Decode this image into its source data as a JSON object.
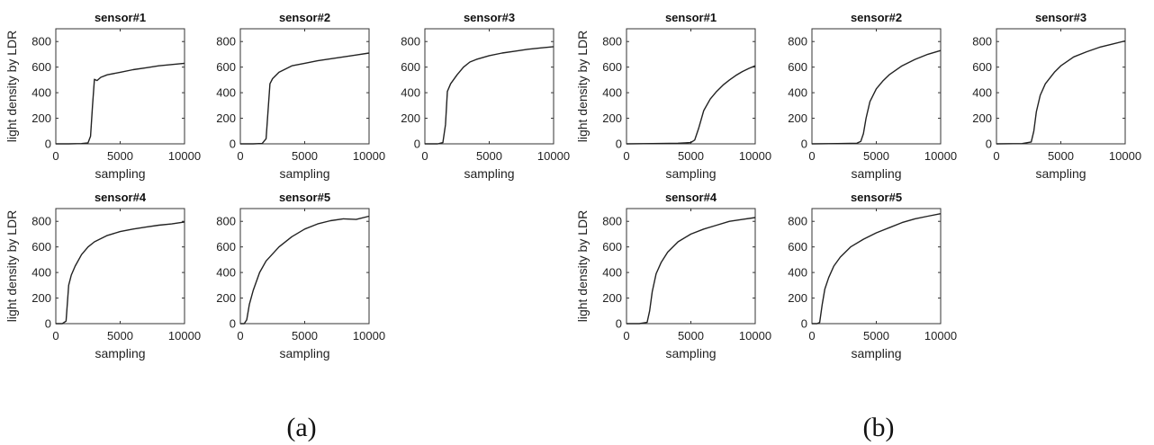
{
  "chart_data": [
    {
      "group": "a",
      "type": "line",
      "title": "sensor#1",
      "xlabel": "sampling",
      "ylabel": "light density by LDR",
      "xlim": [
        0,
        10000
      ],
      "ylim": [
        0,
        900
      ],
      "xticks": [
        "0",
        "5000",
        "10000"
      ],
      "yticks": [
        "0",
        "200",
        "400",
        "600",
        "800"
      ],
      "x": [
        0,
        1000,
        2000,
        2500,
        2700,
        2850,
        3000,
        3200,
        3500,
        4000,
        5000,
        6000,
        7000,
        8000,
        9000,
        10000
      ],
      "y": [
        0,
        0,
        2,
        8,
        60,
        300,
        505,
        495,
        520,
        540,
        560,
        580,
        595,
        610,
        620,
        630
      ]
    },
    {
      "group": "a",
      "type": "line",
      "title": "sensor#2",
      "xlabel": "sampling",
      "ylabel": "",
      "xlim": [
        0,
        10000
      ],
      "ylim": [
        0,
        900
      ],
      "xticks": [
        "0",
        "5000",
        "10000"
      ],
      "yticks": [
        "0",
        "200",
        "400",
        "600",
        "800"
      ],
      "x": [
        0,
        1000,
        1700,
        2000,
        2150,
        2300,
        2500,
        3000,
        4000,
        5000,
        6000,
        7000,
        8000,
        9000,
        10000
      ],
      "y": [
        0,
        0,
        3,
        40,
        250,
        470,
        510,
        560,
        610,
        630,
        650,
        665,
        680,
        695,
        710
      ]
    },
    {
      "group": "a",
      "type": "line",
      "title": "sensor#3",
      "xlabel": "sampling",
      "ylabel": "",
      "xlim": [
        0,
        10000
      ],
      "ylim": [
        0,
        900
      ],
      "xticks": [
        "0",
        "5000",
        "10000"
      ],
      "yticks": [
        "0",
        "200",
        "400",
        "600",
        "800"
      ],
      "x": [
        0,
        1000,
        1400,
        1600,
        1750,
        2000,
        2500,
        3000,
        3500,
        4000,
        5000,
        6000,
        7000,
        8000,
        9000,
        10000
      ],
      "y": [
        0,
        0,
        10,
        150,
        410,
        470,
        540,
        600,
        640,
        660,
        690,
        710,
        725,
        740,
        750,
        760
      ]
    },
    {
      "group": "a",
      "type": "line",
      "title": "sensor#4",
      "xlabel": "sampling",
      "ylabel": "light density by LDR",
      "xlim": [
        0,
        10000
      ],
      "ylim": [
        0,
        900
      ],
      "xticks": [
        "0",
        "5000",
        "10000"
      ],
      "yticks": [
        "0",
        "200",
        "400",
        "600",
        "800"
      ],
      "x": [
        0,
        500,
        800,
        1000,
        1200,
        1500,
        2000,
        2500,
        3000,
        4000,
        5000,
        6000,
        7000,
        8000,
        9000,
        10000
      ],
      "y": [
        0,
        0,
        20,
        300,
        380,
        450,
        540,
        600,
        640,
        690,
        720,
        740,
        755,
        770,
        780,
        795
      ]
    },
    {
      "group": "a",
      "type": "line",
      "title": "sensor#5",
      "xlabel": "sampling",
      "ylabel": "",
      "xlim": [
        0,
        10000
      ],
      "ylim": [
        0,
        900
      ],
      "xticks": [
        "0",
        "5000",
        "10000"
      ],
      "yticks": [
        "0",
        "200",
        "400",
        "600",
        "800"
      ],
      "x": [
        0,
        300,
        500,
        700,
        1000,
        1500,
        2000,
        3000,
        4000,
        5000,
        6000,
        7000,
        8000,
        9000,
        10000
      ],
      "y": [
        0,
        0,
        30,
        150,
        260,
        400,
        490,
        600,
        680,
        740,
        780,
        805,
        820,
        815,
        840
      ]
    },
    {
      "group": "b",
      "type": "line",
      "title": "sensor#1",
      "xlabel": "sampling",
      "ylabel": "light density by LDR",
      "xlim": [
        0,
        10000
      ],
      "ylim": [
        0,
        900
      ],
      "xticks": [
        "0",
        "5000",
        "10000"
      ],
      "yticks": [
        "0",
        "200",
        "400",
        "600",
        "800"
      ],
      "x": [
        0,
        2000,
        4000,
        5000,
        5300,
        5600,
        6000,
        6500,
        7000,
        7500,
        8000,
        8500,
        9000,
        9500,
        10000
      ],
      "y": [
        0,
        2,
        5,
        10,
        30,
        120,
        260,
        350,
        410,
        460,
        500,
        535,
        565,
        590,
        610
      ]
    },
    {
      "group": "b",
      "type": "line",
      "title": "sensor#2",
      "xlabel": "sampling",
      "ylabel": "",
      "xlim": [
        0,
        10000
      ],
      "ylim": [
        0,
        900
      ],
      "xticks": [
        "0",
        "5000",
        "10000"
      ],
      "yticks": [
        "0",
        "200",
        "400",
        "600",
        "800"
      ],
      "x": [
        0,
        2000,
        3500,
        3800,
        4000,
        4200,
        4500,
        5000,
        5500,
        6000,
        7000,
        8000,
        9000,
        10000
      ],
      "y": [
        0,
        2,
        5,
        20,
        80,
        200,
        330,
        430,
        490,
        540,
        610,
        660,
        700,
        730
      ]
    },
    {
      "group": "b",
      "type": "line",
      "title": "sensor#3",
      "xlabel": "sampling",
      "ylabel": "",
      "xlim": [
        0,
        10000
      ],
      "ylim": [
        0,
        900
      ],
      "xticks": [
        "0",
        "5000",
        "10000"
      ],
      "yticks": [
        "0",
        "200",
        "400",
        "600",
        "800"
      ],
      "x": [
        0,
        2000,
        2700,
        2900,
        3100,
        3400,
        3800,
        4500,
        5000,
        6000,
        7000,
        8000,
        9000,
        10000
      ],
      "y": [
        0,
        2,
        15,
        100,
        250,
        380,
        470,
        560,
        610,
        680,
        720,
        755,
        780,
        805
      ]
    },
    {
      "group": "b",
      "type": "line",
      "title": "sensor#4",
      "xlabel": "sampling",
      "ylabel": "light density by LDR",
      "xlim": [
        0,
        10000
      ],
      "ylim": [
        0,
        900
      ],
      "xticks": [
        "0",
        "5000",
        "10000"
      ],
      "yticks": [
        "0",
        "200",
        "400",
        "600",
        "800"
      ],
      "x": [
        0,
        1000,
        1600,
        1800,
        2000,
        2300,
        2700,
        3200,
        4000,
        5000,
        6000,
        7000,
        8000,
        9000,
        10000
      ],
      "y": [
        0,
        0,
        10,
        100,
        250,
        390,
        480,
        560,
        640,
        700,
        740,
        770,
        800,
        815,
        830
      ]
    },
    {
      "group": "b",
      "type": "line",
      "title": "sensor#5",
      "xlabel": "sampling",
      "ylabel": "",
      "xlim": [
        0,
        10000
      ],
      "ylim": [
        0,
        900
      ],
      "xticks": [
        "0",
        "5000",
        "10000"
      ],
      "yticks": [
        "0",
        "200",
        "400",
        "600",
        "800"
      ],
      "x": [
        0,
        400,
        600,
        800,
        1000,
        1300,
        1700,
        2200,
        3000,
        4000,
        5000,
        6000,
        7000,
        8000,
        9000,
        10000
      ],
      "y": [
        0,
        0,
        10,
        150,
        270,
        360,
        450,
        520,
        600,
        660,
        710,
        750,
        790,
        820,
        840,
        860
      ]
    }
  ],
  "captions": {
    "a": "(a)",
    "b": "(b)"
  }
}
